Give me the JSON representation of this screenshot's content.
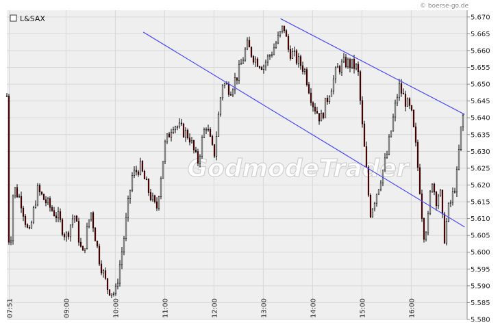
{
  "copyright": "© boerse-go.de",
  "watermark": "GodmodeTrader",
  "chart_data": {
    "type": "candlestick",
    "legend": {
      "label": "L&SAX",
      "placement": "top-left"
    },
    "y_axis": {
      "side": "right",
      "range": [
        5.58,
        5.672
      ],
      "ticks": [
        "5.580",
        "5.585",
        "5.590",
        "5.595",
        "5.600",
        "5.605",
        "5.610",
        "5.615",
        "5.620",
        "5.625",
        "5.630",
        "5.635",
        "5.640",
        "5.645",
        "5.650",
        "5.655",
        "5.660",
        "5.665",
        "5.670"
      ]
    },
    "x_axis": {
      "range": [
        "07:48",
        "17:08"
      ],
      "ticks": [
        "07:51",
        "09:00",
        "10:00",
        "11:00",
        "12:00",
        "13:00",
        "14:00",
        "15:00",
        "16:00"
      ]
    },
    "grid": true,
    "colors": {
      "up": "#ffffff",
      "down": "#8b0000",
      "wick": "#000000",
      "trendline": "#4a4aff",
      "background": "#efefef",
      "grid": "#d8d8d8"
    },
    "trendlines": [
      {
        "from": [
          "10:34",
          5.6655
        ],
        "to": [
          "17:05",
          5.6075
        ]
      },
      {
        "from": [
          "13:21",
          5.6695
        ],
        "to": [
          "17:05",
          5.641
        ]
      }
    ],
    "price_path": [
      [
        "07:48",
        5.6465
      ],
      [
        "07:51",
        5.5955
      ],
      [
        "07:56",
        5.6195
      ],
      [
        "08:05",
        5.6155
      ],
      [
        "08:15",
        5.6045
      ],
      [
        "08:25",
        5.6185
      ],
      [
        "08:40",
        5.6135
      ],
      [
        "08:50",
        5.6105
      ],
      [
        "09:00",
        5.6045
      ],
      [
        "09:10",
        5.6115
      ],
      [
        "09:20",
        5.5985
      ],
      [
        "09:30",
        5.6125
      ],
      [
        "09:40",
        5.5985
      ],
      [
        "09:50",
        5.5895
      ],
      [
        "10:00",
        5.5875
      ],
      [
        "10:10",
        5.6035
      ],
      [
        "10:20",
        5.6225
      ],
      [
        "10:30",
        5.6255
      ],
      [
        "10:40",
        5.6185
      ],
      [
        "10:50",
        5.6125
      ],
      [
        "11:00",
        5.6315
      ],
      [
        "11:10",
        5.6385
      ],
      [
        "11:20",
        5.6365
      ],
      [
        "11:30",
        5.6345
      ],
      [
        "11:40",
        5.6265
      ],
      [
        "11:50",
        5.6385
      ],
      [
        "12:00",
        5.6285
      ],
      [
        "12:10",
        5.6505
      ],
      [
        "12:20",
        5.6485
      ],
      [
        "12:30",
        5.6535
      ],
      [
        "12:40",
        5.6615
      ],
      [
        "12:50",
        5.6575
      ],
      [
        "13:00",
        5.6555
      ],
      [
        "13:10",
        5.6595
      ],
      [
        "13:20",
        5.6645
      ],
      [
        "13:25",
        5.6675
      ],
      [
        "13:30",
        5.6605
      ],
      [
        "13:40",
        5.6575
      ],
      [
        "13:50",
        5.6545
      ],
      [
        "14:00",
        5.6445
      ],
      [
        "14:10",
        5.6395
      ],
      [
        "14:20",
        5.6475
      ],
      [
        "14:30",
        5.6545
      ],
      [
        "14:40",
        5.6565
      ],
      [
        "14:50",
        5.6555
      ],
      [
        "14:55",
        5.6545
      ],
      [
        "15:00",
        5.6385
      ],
      [
        "15:05",
        5.6255
      ],
      [
        "15:10",
        5.6115
      ],
      [
        "15:20",
        5.6195
      ],
      [
        "15:30",
        5.6285
      ],
      [
        "15:40",
        5.6425
      ],
      [
        "15:45",
        5.6495
      ],
      [
        "15:50",
        5.6465
      ],
      [
        "16:00",
        5.6415
      ],
      [
        "16:05",
        5.6325
      ],
      [
        "16:10",
        5.6205
      ],
      [
        "16:15",
        5.6055
      ],
      [
        "16:20",
        5.6085
      ],
      [
        "16:25",
        5.6225
      ],
      [
        "16:30",
        5.6155
      ],
      [
        "16:35",
        5.6185
      ],
      [
        "16:40",
        5.6035
      ],
      [
        "16:45",
        5.6125
      ],
      [
        "16:50",
        5.6165
      ],
      [
        "16:55",
        5.6215
      ],
      [
        "17:00",
        5.6355
      ],
      [
        "17:03",
        5.6405
      ]
    ]
  }
}
